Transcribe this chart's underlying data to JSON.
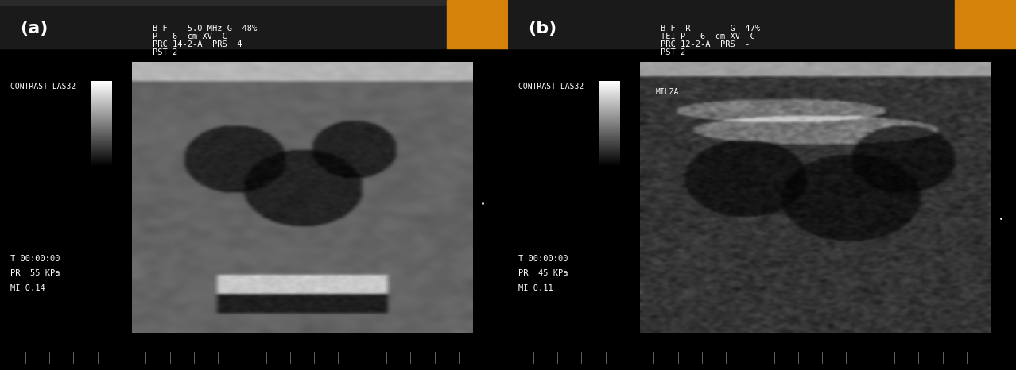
{
  "fig_width": 12.78,
  "fig_height": 4.66,
  "bg_color": "#000000",
  "panel_a_label": "(a)",
  "panel_b_label": "(b)",
  "header_bar_color": "#4a4a4a",
  "orange_bar_color": "#d4820a",
  "text_color": "#ffffff",
  "text_color_label": "#ffffff",
  "panel_a_header_text1": "B F    5.0 MHz G  48%",
  "panel_a_header_text2": "P   6  cm XV  C",
  "panel_a_header_text3": "PRC 14-2-A  PRS  4",
  "panel_a_header_text4": "PST 2",
  "panel_b_header_text1": "B F  R        G  47%",
  "panel_b_header_text2": "TEI P   6  cm XV  C",
  "panel_b_header_text3": "PRC 12-2-A  PRS  -",
  "panel_b_header_text4": "PST 2",
  "contrast_label": "CONTRAST LAS32",
  "panel_a_bottom_text1": "T 00:00:00",
  "panel_a_bottom_text2": "PR  55 KPa",
  "panel_a_bottom_text3": "MI 0.14",
  "panel_b_bottom_text1": "T 00:00:00",
  "panel_b_bottom_text2": "PR  45 KPa",
  "panel_b_bottom_text3": "MI 0.11",
  "panel_b_milza_label": "MILZA",
  "seed": 42
}
